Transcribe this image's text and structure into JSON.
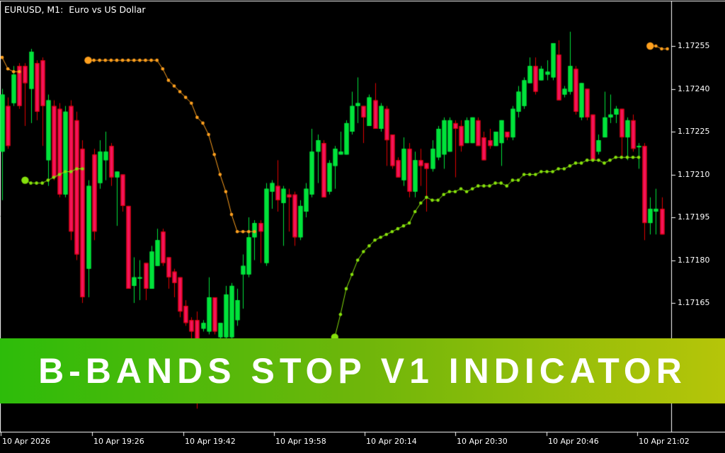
{
  "header": {
    "title": "EURUSD, M1:  Euro vs US Dollar"
  },
  "banner": {
    "text": "B-BANDS STOP V1 INDICATOR",
    "text_color": "#ffffff",
    "gradient_left": "#2dbc0a",
    "gradient_mid": "#6fb60a",
    "gradient_right": "#b6c509"
  },
  "price_axis": {
    "labels": [
      "1.17255",
      "1.17240",
      "1.17225",
      "1.17210",
      "1.17195",
      "1.17180",
      "1.17165"
    ]
  },
  "time_axis": {
    "labels": [
      "10 Apr 2026",
      "10 Apr 19:26",
      "10 Apr 19:42",
      "10 Apr 19:58",
      "10 Apr 20:14",
      "10 Apr 20:30",
      "10 Apr 20:46",
      "10 Apr 21:02"
    ]
  },
  "chart_data": {
    "type": "candlestick",
    "symbol": "EURUSD",
    "timeframe": "M1",
    "description": "Euro vs US Dollar",
    "indicator_name": "B-Bands Stop V1",
    "ylim": [
      1.17128,
      1.17262
    ],
    "grid": false,
    "colors": {
      "background": "#000000",
      "bull_body": "#00e33b",
      "bull_line": "#00e33b",
      "bear_body": "#f4135d",
      "bear_line": "#e00000",
      "stop_up_dots": "#86e10c",
      "stop_down_dots": "#ffa01e",
      "axis_text": "#ffffff",
      "frame": "#ffffff"
    },
    "candles_ohlc": [
      [
        1.17218,
        1.1724,
        1.17201,
        1.17238
      ],
      [
        1.17234,
        1.17237,
        1.17219,
        1.1722
      ],
      [
        1.17235,
        1.17248,
        1.17234,
        1.17245
      ],
      [
        1.17248,
        1.17249,
        1.17233,
        1.17234
      ],
      [
        1.17248,
        1.17249,
        1.17227,
        1.17242
      ],
      [
        1.1724,
        1.17254,
        1.17228,
        1.17253
      ],
      [
        1.17249,
        1.1725,
        1.17229,
        1.17232
      ],
      [
        1.1725,
        1.17251,
        1.1722,
        1.17234
      ],
      [
        1.17215,
        1.17238,
        1.17206,
        1.17236
      ],
      [
        1.17234,
        1.17236,
        1.17208,
        1.17209
      ],
      [
        1.17233,
        1.17235,
        1.17202,
        1.17203
      ],
      [
        1.17203,
        1.17234,
        1.17202,
        1.17232
      ],
      [
        1.17234,
        1.17236,
        1.17187,
        1.1719
      ],
      [
        1.17229,
        1.17232,
        1.1718,
        1.17182
      ],
      [
        1.17219,
        1.17222,
        1.17165,
        1.17167
      ],
      [
        1.17177,
        1.17208,
        1.17167,
        1.17206
      ],
      [
        1.17217,
        1.17219,
        1.17187,
        1.1719
      ],
      [
        1.17207,
        1.17222,
        1.17205,
        1.17218
      ],
      [
        1.17215,
        1.17225,
        1.17208,
        1.17218
      ],
      [
        1.1722,
        1.17221,
        1.17206,
        1.17209
      ],
      [
        1.17209,
        1.17211,
        1.17192,
        1.17211
      ],
      [
        1.1721,
        1.1721,
        1.17197,
        1.17199
      ],
      [
        1.17199,
        1.17199,
        1.1717,
        1.1717
      ],
      [
        1.17171,
        1.17181,
        1.17165,
        1.17174
      ],
      [
        1.17174,
        1.1718,
        1.17166,
        1.17174
      ],
      [
        1.17179,
        1.17179,
        1.17166,
        1.1717
      ],
      [
        1.1717,
        1.17185,
        1.1717,
        1.17183
      ],
      [
        1.17178,
        1.17191,
        1.17178,
        1.17187
      ],
      [
        1.1719,
        1.17191,
        1.17178,
        1.17179
      ],
      [
        1.17181,
        1.17181,
        1.1717,
        1.17174
      ],
      [
        1.17176,
        1.17177,
        1.17167,
        1.17172
      ],
      [
        1.17174,
        1.17174,
        1.1716,
        1.17162
      ],
      [
        1.17164,
        1.17166,
        1.17157,
        1.17158
      ],
      [
        1.17159,
        1.1716,
        1.17152,
        1.17155
      ],
      [
        1.17159,
        1.17162,
        1.17128,
        1.17132
      ],
      [
        1.17156,
        1.17159,
        1.17155,
        1.17158
      ],
      [
        1.17155,
        1.17174,
        1.17154,
        1.17167
      ],
      [
        1.17167,
        1.17167,
        1.17154,
        1.17155
      ],
      [
        1.17153,
        1.17158,
        1.17152,
        1.17158
      ],
      [
        1.17153,
        1.17171,
        1.17152,
        1.17168
      ],
      [
        1.17153,
        1.17172,
        1.17152,
        1.17171
      ],
      [
        1.17159,
        1.1717,
        1.17157,
        1.17166
      ],
      [
        1.17175,
        1.17182,
        1.17163,
        1.17178
      ],
      [
        1.17175,
        1.17195,
        1.17174,
        1.17188
      ],
      [
        1.17188,
        1.17194,
        1.1718,
        1.17193
      ],
      [
        1.17193,
        1.17194,
        1.17179,
        1.1719
      ],
      [
        1.17179,
        1.17207,
        1.17178,
        1.17205
      ],
      [
        1.17204,
        1.17208,
        1.17198,
        1.17207
      ],
      [
        1.17206,
        1.17215,
        1.17197,
        1.17201
      ],
      [
        1.172,
        1.17206,
        1.17185,
        1.17205
      ],
      [
        1.17203,
        1.17205,
        1.1719,
        1.17202
      ],
      [
        1.17203,
        1.17204,
        1.17185,
        1.17188
      ],
      [
        1.17188,
        1.17201,
        1.17187,
        1.17199
      ],
      [
        1.17197,
        1.17207,
        1.17195,
        1.17205
      ],
      [
        1.17203,
        1.17226,
        1.17202,
        1.17218
      ],
      [
        1.17218,
        1.17224,
        1.17207,
        1.17222
      ],
      [
        1.17221,
        1.17222,
        1.17202,
        1.17202
      ],
      [
        1.17204,
        1.17215,
        1.17203,
        1.17214
      ],
      [
        1.17213,
        1.1722,
        1.17205,
        1.17219
      ],
      [
        1.17217,
        1.17225,
        1.17217,
        1.17218
      ],
      [
        1.17217,
        1.17229,
        1.17217,
        1.17228
      ],
      [
        1.17225,
        1.17239,
        1.17224,
        1.17234
      ],
      [
        1.17234,
        1.17244,
        1.17228,
        1.17235
      ],
      [
        1.17234,
        1.17234,
        1.17221,
        1.1723
      ],
      [
        1.17227,
        1.17238,
        1.17227,
        1.17237
      ],
      [
        1.17236,
        1.17242,
        1.17226,
        1.17226
      ],
      [
        1.17226,
        1.17235,
        1.17225,
        1.17234
      ],
      [
        1.17233,
        1.17234,
        1.17213,
        1.17222
      ],
      [
        1.17224,
        1.17224,
        1.17212,
        1.17213
      ],
      [
        1.17215,
        1.17216,
        1.17209,
        1.17209
      ],
      [
        1.17208,
        1.17223,
        1.17206,
        1.17219
      ],
      [
        1.17219,
        1.17221,
        1.17202,
        1.17204
      ],
      [
        1.17204,
        1.17218,
        1.17202,
        1.17215
      ],
      [
        1.17215,
        1.17219,
        1.17206,
        1.17213
      ],
      [
        1.17214,
        1.17214,
        1.17197,
        1.17212
      ],
      [
        1.17212,
        1.17222,
        1.17211,
        1.17219
      ],
      [
        1.17216,
        1.17227,
        1.17215,
        1.17226
      ],
      [
        1.17217,
        1.1723,
        1.17212,
        1.17229
      ],
      [
        1.17218,
        1.1723,
        1.17218,
        1.17229
      ],
      [
        1.17228,
        1.17229,
        1.17209,
        1.17226
      ],
      [
        1.17227,
        1.17229,
        1.17218,
        1.1722
      ],
      [
        1.17221,
        1.1723,
        1.17221,
        1.17229
      ],
      [
        1.17221,
        1.1723,
        1.17221,
        1.1723
      ],
      [
        1.17229,
        1.1723,
        1.1722,
        1.1722
      ],
      [
        1.17223,
        1.17225,
        1.17215,
        1.17215
      ],
      [
        1.17222,
        1.17226,
        1.17219,
        1.1722
      ],
      [
        1.1722,
        1.17225,
        1.1722,
        1.17225
      ],
      [
        1.17221,
        1.17229,
        1.17213,
        1.17229
      ],
      [
        1.17225,
        1.17225,
        1.17222,
        1.17223
      ],
      [
        1.17223,
        1.17234,
        1.17222,
        1.17233
      ],
      [
        1.17232,
        1.17241,
        1.1723,
        1.17239
      ],
      [
        1.17234,
        1.17244,
        1.17233,
        1.17243
      ],
      [
        1.17242,
        1.17251,
        1.17242,
        1.17248
      ],
      [
        1.17248,
        1.17251,
        1.17238,
        1.17239
      ],
      [
        1.17243,
        1.17248,
        1.17243,
        1.17247
      ],
      [
        1.17245,
        1.1725,
        1.17243,
        1.17246
      ],
      [
        1.17244,
        1.17256,
        1.17243,
        1.17256
      ],
      [
        1.17252,
        1.17257,
        1.17236,
        1.17236
      ],
      [
        1.17238,
        1.17241,
        1.17237,
        1.1724
      ],
      [
        1.17239,
        1.1726,
        1.17238,
        1.17248
      ],
      [
        1.17247,
        1.17248,
        1.17231,
        1.17232
      ],
      [
        1.1723,
        1.17242,
        1.17229,
        1.17242
      ],
      [
        1.1724,
        1.1724,
        1.17229,
        1.1723
      ],
      [
        1.17231,
        1.17231,
        1.17215,
        1.17215
      ],
      [
        1.17218,
        1.17224,
        1.17217,
        1.17222
      ],
      [
        1.17223,
        1.17239,
        1.17223,
        1.1723
      ],
      [
        1.1723,
        1.17238,
        1.17228,
        1.17231
      ],
      [
        1.17231,
        1.17234,
        1.17228,
        1.17233
      ],
      [
        1.17233,
        1.17233,
        1.17216,
        1.17223
      ],
      [
        1.17223,
        1.1723,
        1.17215,
        1.17229
      ],
      [
        1.17229,
        1.17231,
        1.17218,
        1.17219
      ],
      [
        1.1722,
        1.17221,
        1.17212,
        1.1722
      ],
      [
        1.1722,
        1.17221,
        1.17187,
        1.17193
      ],
      [
        1.17193,
        1.17202,
        1.17189,
        1.17198
      ],
      [
        1.17197,
        1.17205,
        1.17189,
        1.17198
      ],
      [
        1.17198,
        1.17202,
        1.17189,
        1.17189
      ]
    ],
    "indicator_segments": [
      {
        "direction": "down",
        "start_index": 0,
        "big_first": false,
        "values": [
          1.17251,
          1.17247,
          1.17246,
          1.17246
        ]
      },
      {
        "direction": "up",
        "start_index": 4,
        "big_first": true,
        "values": [
          1.17208,
          1.17207,
          1.17207,
          1.17207,
          1.17208,
          1.17209,
          1.1721,
          1.17211,
          1.17211,
          1.17212,
          1.17212
        ]
      },
      {
        "direction": "down",
        "start_index": 15,
        "big_first": true,
        "values": [
          1.1725,
          1.1725,
          1.1725,
          1.1725,
          1.1725,
          1.1725,
          1.1725,
          1.1725,
          1.1725,
          1.1725,
          1.1725,
          1.1725,
          1.1725,
          1.17247,
          1.17243,
          1.17241,
          1.17239,
          1.17237,
          1.17235,
          1.1723,
          1.17228,
          1.17224,
          1.17217,
          1.1721,
          1.17204,
          1.17196,
          1.1719,
          1.1719,
          1.1719,
          1.1719
        ]
      },
      {
        "direction": "up",
        "start_index": 58,
        "big_first": true,
        "values": [
          1.17153,
          1.17161,
          1.1717,
          1.17175,
          1.1718,
          1.17183,
          1.17185,
          1.17187,
          1.17188,
          1.17189,
          1.1719,
          1.17191,
          1.17192,
          1.17193,
          1.17197,
          1.172,
          1.17202,
          1.17201,
          1.17201,
          1.17203,
          1.17204,
          1.17204,
          1.17205,
          1.17204,
          1.17205,
          1.17206,
          1.17206,
          1.17206,
          1.17207,
          1.17207,
          1.17206,
          1.17208,
          1.17208,
          1.1721,
          1.1721,
          1.1721,
          1.17211,
          1.17211,
          1.17211,
          1.17212,
          1.17212,
          1.17213,
          1.17214,
          1.17214,
          1.17215,
          1.17215,
          1.17215,
          1.17214,
          1.17215,
          1.17216,
          1.17216,
          1.17216,
          1.17216,
          1.17216
        ]
      },
      {
        "direction": "down",
        "start_index": 113,
        "big_first": true,
        "values": [
          1.17255,
          1.17255,
          1.17254,
          1.17254
        ]
      }
    ]
  }
}
